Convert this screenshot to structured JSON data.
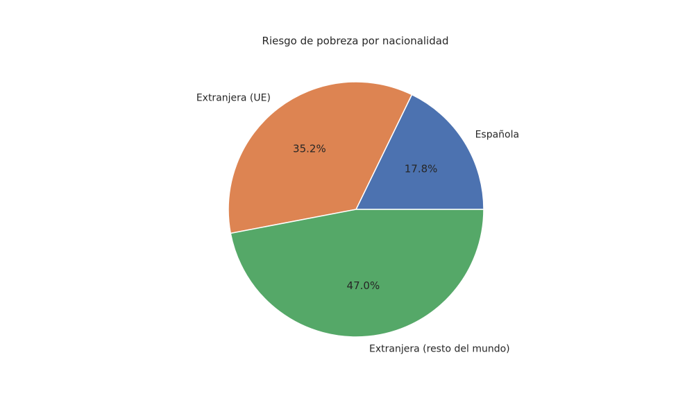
{
  "chart_data": {
    "type": "pie",
    "title": "Riesgo de pobreza por nacionalidad",
    "slices": [
      {
        "label": "Española",
        "value": 17.8,
        "pct_label": "17.8%",
        "color": "#4c72b0"
      },
      {
        "label": "Extranjera (UE)",
        "value": 35.2,
        "pct_label": "35.2%",
        "color": "#dd8452"
      },
      {
        "label": "Extranjera (resto del mundo)",
        "value": 47.0,
        "pct_label": "47.0%",
        "color": "#55a868"
      }
    ],
    "start_angle": 0,
    "direction": "counterclockwise",
    "wedge_edge_color": "#ffffff"
  }
}
